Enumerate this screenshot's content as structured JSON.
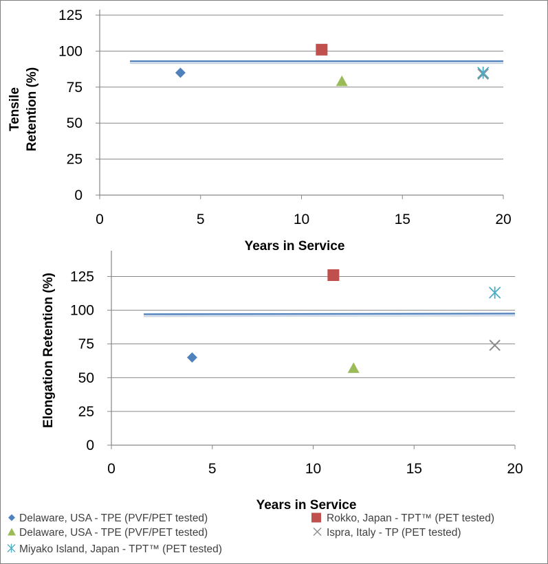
{
  "chart_data": [
    {
      "type": "scatter",
      "title": "",
      "xlabel": "Years in Service",
      "ylabel_lines": [
        "Tensile",
        "Retention (%)"
      ],
      "xlim": [
        0,
        20
      ],
      "ylim": [
        0,
        125
      ],
      "xticks": [
        0,
        5,
        10,
        15,
        20
      ],
      "yticks": [
        0,
        25,
        50,
        75,
        100,
        125
      ],
      "grid": "horizontal",
      "reference_line": {
        "y_start": 93,
        "y_end": 93,
        "x_start": 1.5,
        "x_end": 20
      },
      "series": [
        {
          "name": "Delaware, USA - TPE (PVF/PET tested)",
          "marker": "diamond",
          "color": "#4f81bd",
          "x": [
            4
          ],
          "y": [
            85
          ]
        },
        {
          "name": "Rokko, Japan - TPT™ (PET tested)",
          "marker": "square",
          "color": "#c0504d",
          "x": [
            11
          ],
          "y": [
            101
          ]
        },
        {
          "name": "Delaware, USA - TPE (PVF/PET tested)",
          "marker": "triangle",
          "color": "#9bbb59",
          "x": [
            12
          ],
          "y": [
            79
          ]
        },
        {
          "name": "Ispra, Italy - TP (PET tested)",
          "marker": "x",
          "color": "#8c8c8c",
          "x": [
            19
          ],
          "y": [
            84
          ]
        },
        {
          "name": "Miyako Island, Japan - TPT™ (PET tested)",
          "marker": "star",
          "color": "#4bacc6",
          "x": [
            19
          ],
          "y": [
            85
          ]
        }
      ]
    },
    {
      "type": "scatter",
      "title": "",
      "xlabel": "Years in Service",
      "ylabel_lines": [
        "Elongation Retention (%)"
      ],
      "xlim": [
        0,
        20
      ],
      "ylim": [
        0,
        140
      ],
      "xticks": [
        0,
        5,
        10,
        15,
        20
      ],
      "yticks": [
        0,
        25,
        50,
        75,
        100,
        125
      ],
      "grid": "horizontal",
      "reference_line": {
        "y_start": 97,
        "y_end": 97.5,
        "x_start": 1.6,
        "x_end": 20
      },
      "series": [
        {
          "name": "Delaware, USA - TPE (PVF/PET tested)",
          "marker": "diamond",
          "color": "#4f81bd",
          "x": [
            4
          ],
          "y": [
            65
          ]
        },
        {
          "name": "Rokko, Japan - TPT™ (PET tested)",
          "marker": "square",
          "color": "#c0504d",
          "x": [
            11
          ],
          "y": [
            126
          ]
        },
        {
          "name": "Delaware, USA - TPE (PVF/PET tested)",
          "marker": "triangle",
          "color": "#9bbb59",
          "x": [
            12
          ],
          "y": [
            57
          ]
        },
        {
          "name": "Ispra, Italy - TP (PET tested)",
          "marker": "x",
          "color": "#8c8c8c",
          "x": [
            19
          ],
          "y": [
            74
          ]
        },
        {
          "name": "Miyako Island, Japan - TPT™ (PET tested)",
          "marker": "star",
          "color": "#4bacc6",
          "x": [
            19
          ],
          "y": [
            113
          ]
        }
      ]
    }
  ],
  "legend": {
    "placement": "bottom",
    "items": [
      {
        "label": "Delaware, USA - TPE (PVF/PET tested)",
        "marker": "diamond",
        "color": "#4f81bd"
      },
      {
        "label": "Rokko, Japan - TPT™  (PET tested)",
        "marker": "square",
        "color": "#c0504d"
      },
      {
        "label": "Delaware, USA - TPE (PVF/PET tested)",
        "marker": "triangle",
        "color": "#9bbb59"
      },
      {
        "label": "Ispra, Italy - TP (PET tested)",
        "marker": "x",
        "color": "#8c8c8c"
      },
      {
        "label": "Miyako Island, Japan - TPT™  (PET tested)",
        "marker": "star",
        "color": "#4bacc6"
      }
    ]
  },
  "colors": {
    "gridline": "#868686",
    "axis": "#868686",
    "reference_line": "#4f81bd"
  }
}
